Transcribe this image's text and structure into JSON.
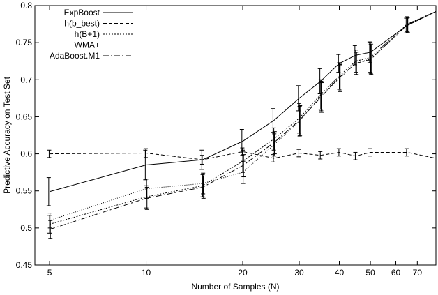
{
  "chart_data": {
    "type": "line",
    "title": "",
    "xlabel": "Number of Samples (N)",
    "ylabel": "Predictive Accuracy on Test Set",
    "x_scale": "log",
    "xlim": [
      4.5,
      80
    ],
    "ylim": [
      0.45,
      0.8
    ],
    "x_ticks": [
      5,
      10,
      20,
      30,
      40,
      50,
      60,
      70
    ],
    "y_ticks": [
      0.45,
      0.5,
      0.55,
      0.6,
      0.65,
      0.7,
      0.75,
      0.8
    ],
    "x_tick_labels": [
      "5",
      "10",
      "20",
      "30",
      "40",
      "50",
      "60",
      "70"
    ],
    "y_tick_labels": [
      "0.45",
      "0.5",
      "0.55",
      "0.6",
      "0.65",
      "0.7",
      "0.75",
      "0.8"
    ],
    "grid": false,
    "legend_position": "top-left",
    "series": [
      {
        "name": "ExpBoost",
        "dash": "solid",
        "x": [
          5,
          10,
          15,
          20,
          25,
          30,
          35,
          40,
          45,
          50,
          65,
          80
        ],
        "y": [
          0.549,
          0.585,
          0.592,
          0.617,
          0.645,
          0.675,
          0.698,
          0.722,
          0.733,
          0.737,
          0.773,
          0.792
        ],
        "err": [
          0.019,
          0.02,
          0.013,
          0.016,
          0.016,
          0.017,
          0.017,
          0.012,
          0.013,
          0.014,
          0.01,
          null
        ]
      },
      {
        "name": "h(b_best)",
        "dash": "dashed",
        "x": [
          5,
          10,
          15,
          20,
          25,
          30,
          35,
          40,
          45,
          50,
          65,
          80
        ],
        "y": [
          0.6,
          0.601,
          0.592,
          0.603,
          0.594,
          0.601,
          0.598,
          0.602,
          0.597,
          0.602,
          0.602,
          0.594
        ],
        "err": [
          0.005,
          0.006,
          0.006,
          0.005,
          0.005,
          0.005,
          0.005,
          0.005,
          0.005,
          0.005,
          0.005,
          null
        ]
      },
      {
        "name": "h(B+1)",
        "dash": "dotted-dense",
        "x": [
          5,
          10,
          15,
          20,
          25,
          30,
          35,
          40,
          45,
          50,
          65,
          80
        ],
        "y": [
          0.505,
          0.542,
          0.557,
          0.59,
          0.62,
          0.648,
          0.68,
          0.705,
          0.725,
          0.73,
          0.775,
          0.792
        ],
        "err": [
          0.012,
          0.015,
          0.015,
          0.015,
          0.015,
          0.02,
          0.02,
          0.018,
          0.015,
          0.02,
          0.01,
          null
        ]
      },
      {
        "name": "WMA+",
        "dash": "dotted",
        "x": [
          5,
          10,
          15,
          20,
          25,
          30,
          35,
          40,
          45,
          50,
          65,
          80
        ],
        "y": [
          0.51,
          0.553,
          0.56,
          0.575,
          0.612,
          0.644,
          0.678,
          0.702,
          0.722,
          0.728,
          0.773,
          0.792
        ],
        "err": [
          0.01,
          0.013,
          0.014,
          0.015,
          0.015,
          0.02,
          0.02,
          0.018,
          0.015,
          0.02,
          0.01,
          null
        ]
      },
      {
        "name": "AdaBoost.M1",
        "dash": "dashdot",
        "x": [
          5,
          10,
          15,
          20,
          25,
          30,
          35,
          40,
          45,
          50,
          65,
          80
        ],
        "y": [
          0.498,
          0.54,
          0.555,
          0.584,
          0.615,
          0.645,
          0.676,
          0.703,
          0.722,
          0.727,
          0.774,
          0.792
        ],
        "err": [
          0.012,
          0.015,
          0.015,
          0.015,
          0.015,
          0.02,
          0.02,
          0.018,
          0.015,
          0.02,
          0.01,
          null
        ]
      }
    ]
  }
}
